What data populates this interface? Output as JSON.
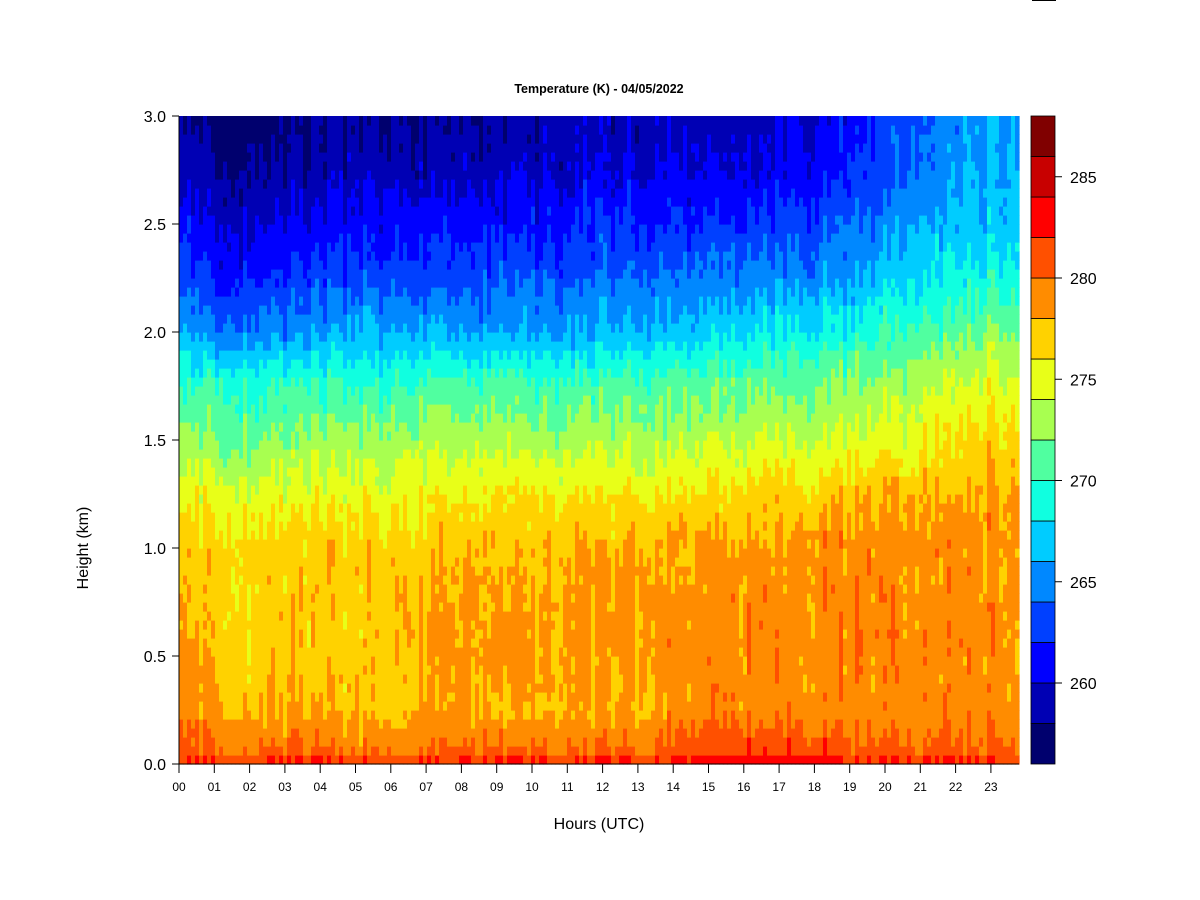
{
  "chart_data": {
    "type": "heatmap",
    "title": "Temperature (K) - 04/05/2022",
    "xlabel": "Hours (UTC)",
    "ylabel": "Height (km)",
    "xlim": [
      0,
      23.8
    ],
    "ylim": [
      0,
      3.0
    ],
    "x_ticks": [
      "00",
      "01",
      "02",
      "03",
      "04",
      "05",
      "06",
      "07",
      "08",
      "09",
      "10",
      "11",
      "12",
      "13",
      "14",
      "15",
      "16",
      "17",
      "18",
      "19",
      "20",
      "21",
      "22",
      "23"
    ],
    "y_ticks": [
      "0.0",
      "0.5",
      "1.0",
      "1.5",
      "2.0",
      "2.5",
      "3.0"
    ],
    "y_tick_values": [
      0,
      0.5,
      1.0,
      1.5,
      2.0,
      2.5,
      3.0
    ],
    "hours": [
      0,
      1,
      2,
      3,
      4,
      5,
      6,
      7,
      8,
      9,
      10,
      11,
      12,
      13,
      14,
      15,
      16,
      17,
      18,
      19,
      20,
      21,
      22,
      23
    ],
    "heights_km": [
      0,
      0.25,
      0.5,
      0.75,
      1.0,
      1.25,
      1.5,
      1.75,
      2.0,
      2.25,
      2.5,
      2.75,
      3.0
    ],
    "temperature_K": [
      [
        281,
        281,
        281,
        281,
        281,
        280.5,
        280.5,
        280.5,
        281,
        281,
        281,
        281,
        281,
        281,
        281,
        282,
        282,
        282,
        282,
        281.5,
        281,
        281,
        281,
        281
      ],
      [
        279,
        278.5,
        278,
        278,
        277.5,
        277.5,
        277.5,
        278,
        278,
        277.5,
        278,
        278,
        278,
        278,
        278.5,
        279,
        279,
        279,
        279,
        279,
        279,
        279,
        279,
        279
      ],
      [
        278.5,
        278,
        277,
        277,
        277,
        277,
        277,
        278,
        278.5,
        278.5,
        278.5,
        278.5,
        278,
        278.5,
        279,
        279,
        279,
        279,
        279,
        279.5,
        279.5,
        279.5,
        279,
        279
      ],
      [
        277.5,
        277,
        277,
        277,
        277,
        277,
        277.5,
        278,
        278,
        278,
        278,
        278.5,
        278.5,
        278.5,
        278.5,
        278.5,
        279,
        279,
        279,
        279.5,
        279.5,
        279,
        279,
        279
      ],
      [
        277,
        277,
        277,
        277,
        277,
        277,
        277,
        277,
        277.5,
        277.5,
        277.5,
        278,
        278,
        278,
        278,
        278.5,
        278.5,
        278.5,
        279,
        279,
        279,
        279,
        279,
        279
      ],
      [
        275,
        275,
        275,
        275,
        275,
        275,
        275,
        275.5,
        275.5,
        275.5,
        276,
        276,
        276,
        276,
        276,
        276.5,
        276.5,
        277,
        277,
        277.5,
        278,
        278,
        278,
        278.5
      ],
      [
        272,
        272,
        272,
        272,
        272.5,
        272.5,
        272.5,
        273,
        273,
        273,
        273,
        273,
        273,
        273,
        273,
        273.5,
        273.5,
        274,
        274,
        274.5,
        275,
        275.5,
        276,
        277
      ],
      [
        269.5,
        270,
        270,
        270,
        270,
        270,
        270,
        270.5,
        270.5,
        270.5,
        270.5,
        270.5,
        270.5,
        271,
        271,
        271,
        271.5,
        271.5,
        272,
        272.5,
        273,
        273.5,
        274,
        275
      ],
      [
        266,
        265,
        265,
        265,
        265.5,
        266,
        266,
        266,
        265.5,
        265.5,
        266,
        266,
        266,
        266.5,
        267,
        267,
        267.5,
        268,
        268.5,
        269,
        270,
        270.5,
        271,
        272
      ],
      [
        263,
        262,
        262,
        262,
        263,
        263,
        263,
        263,
        263,
        263,
        263.5,
        263.5,
        264,
        264,
        264,
        264.5,
        265,
        265,
        265.5,
        266,
        267,
        268,
        268.5,
        269.5
      ],
      [
        261,
        260,
        260,
        260,
        260.5,
        261,
        261,
        261,
        261,
        261,
        261.5,
        261.5,
        262,
        262,
        262,
        262,
        262,
        262.5,
        263,
        264,
        265,
        266,
        266.5,
        267
      ],
      [
        259,
        258.5,
        258,
        258,
        258.5,
        259,
        259,
        259,
        259,
        259,
        259.5,
        259.5,
        260,
        260,
        260,
        260,
        260,
        260.5,
        261,
        262,
        263,
        264.5,
        265.5,
        266.5
      ],
      [
        258,
        257.5,
        257.5,
        257.5,
        258,
        258,
        258,
        258,
        258,
        258,
        258.5,
        259,
        259,
        259,
        259,
        259,
        259,
        259.5,
        260,
        261,
        262.5,
        264,
        265,
        266
      ]
    ],
    "colorbar": {
      "range": [
        256,
        288
      ],
      "step": 2,
      "tick_labels": [
        "260",
        "265",
        "270",
        "275",
        "280",
        "285"
      ],
      "tick_values": [
        260,
        265,
        270,
        275,
        280,
        285
      ],
      "colors": [
        "#00006E",
        "#0000B4",
        "#0000FF",
        "#0040FF",
        "#0088FF",
        "#00CCFF",
        "#10FFE0",
        "#50FFA0",
        "#A8FF50",
        "#E8FF18",
        "#FFD200",
        "#FF8C00",
        "#FF5000",
        "#FF0000",
        "#C80000",
        "#800000"
      ]
    }
  }
}
